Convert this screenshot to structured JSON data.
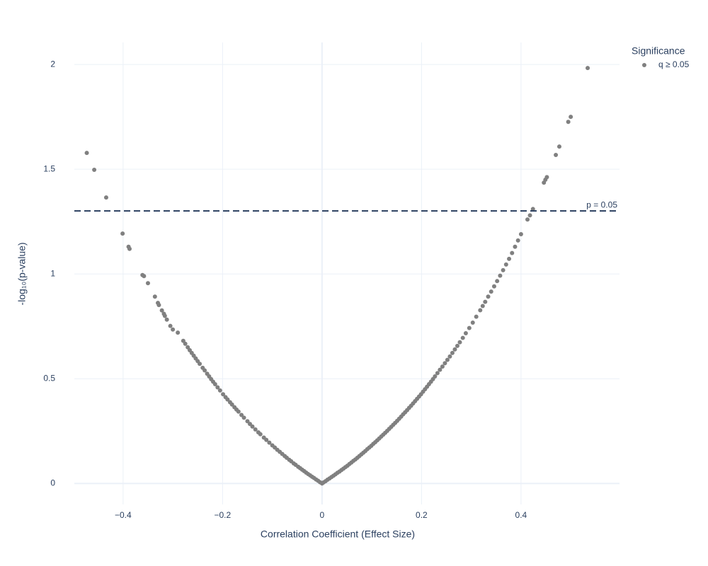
{
  "chart_data": {
    "type": "scatter",
    "x_label": "Correlation Coefficient (Effect Size)",
    "y_label": "-log₁₀(p-value)",
    "legend_title": "Significance",
    "legend_position": "top-right",
    "grid": true,
    "xlim": [
      -0.498,
      0.598
    ],
    "ylim": [
      -0.1,
      2.105
    ],
    "xticks": [
      {
        "value": -0.4,
        "label": "−0.4"
      },
      {
        "value": -0.2,
        "label": "−0.2"
      },
      0,
      0.2,
      0.4
    ],
    "yticks": [
      0,
      0.5,
      1,
      1.5,
      2
    ],
    "hline": {
      "y": 1.301,
      "label": "p = 0.05",
      "color": "#2a3f5f"
    },
    "series": [
      {
        "name": "q ≥ 0.05",
        "color": "#808080",
        "x": [
          -0.473,
          -0.458,
          -0.434,
          -0.401,
          -0.389,
          -0.387,
          -0.361,
          -0.358,
          -0.35,
          -0.336,
          -0.33,
          -0.328,
          -0.322,
          -0.318,
          -0.316,
          -0.312,
          -0.305,
          -0.3,
          -0.29,
          -0.279,
          -0.275,
          -0.27,
          -0.266,
          -0.262,
          -0.258,
          -0.254,
          -0.25,
          -0.246,
          -0.24,
          -0.236,
          -0.231,
          -0.227,
          -0.223,
          -0.219,
          -0.215,
          -0.21,
          -0.205,
          -0.199,
          -0.194,
          -0.19,
          -0.185,
          -0.181,
          -0.176,
          -0.172,
          -0.168,
          -0.162,
          -0.157,
          -0.15,
          -0.145,
          -0.14,
          -0.134,
          -0.128,
          -0.124,
          -0.117,
          -0.112,
          -0.106,
          -0.1,
          -0.095,
          -0.09,
          -0.085,
          -0.08,
          -0.075,
          -0.071,
          -0.066,
          -0.062,
          -0.057,
          -0.053,
          -0.048,
          -0.044,
          -0.04,
          -0.036,
          -0.032,
          -0.028,
          -0.024,
          -0.02,
          -0.016,
          -0.012,
          -0.008,
          -0.004,
          0,
          0.003,
          0.007,
          0.011,
          0.015,
          0.019,
          0.023,
          0.027,
          0.031,
          0.035,
          0.039,
          0.043,
          0.047,
          0.051,
          0.055,
          0.059,
          0.063,
          0.067,
          0.071,
          0.075,
          0.079,
          0.083,
          0.087,
          0.091,
          0.095,
          0.099,
          0.103,
          0.107,
          0.111,
          0.115,
          0.119,
          0.123,
          0.127,
          0.131,
          0.135,
          0.139,
          0.143,
          0.147,
          0.151,
          0.155,
          0.159,
          0.163,
          0.167,
          0.171,
          0.175,
          0.179,
          0.183,
          0.187,
          0.191,
          0.195,
          0.199,
          0.203,
          0.207,
          0.211,
          0.215,
          0.219,
          0.223,
          0.227,
          0.232,
          0.237,
          0.242,
          0.247,
          0.252,
          0.257,
          0.262,
          0.267,
          0.272,
          0.277,
          0.283,
          0.289,
          0.296,
          0.303,
          0.31,
          0.318,
          0.323,
          0.328,
          0.334,
          0.34,
          0.346,
          0.352,
          0.358,
          0.364,
          0.37,
          0.376,
          0.382,
          0.388,
          0.394,
          0.4,
          0.413,
          0.418,
          0.424,
          0.446,
          0.449,
          0.452,
          0.47,
          0.477,
          0.495,
          0.5,
          0.534
        ],
        "values": [
          1.578,
          1.497,
          1.365,
          1.193,
          1.13,
          1.12,
          0.995,
          0.99,
          0.956,
          0.892,
          0.862,
          0.852,
          0.826,
          0.81,
          0.8,
          0.782,
          0.752,
          0.735,
          0.72,
          0.681,
          0.667,
          0.65,
          0.636,
          0.623,
          0.61,
          0.597,
          0.584,
          0.571,
          0.552,
          0.54,
          0.524,
          0.511,
          0.498,
          0.486,
          0.474,
          0.459,
          0.444,
          0.426,
          0.412,
          0.401,
          0.388,
          0.377,
          0.364,
          0.353,
          0.343,
          0.327,
          0.314,
          0.297,
          0.284,
          0.272,
          0.258,
          0.244,
          0.235,
          0.219,
          0.208,
          0.195,
          0.182,
          0.172,
          0.161,
          0.151,
          0.141,
          0.131,
          0.123,
          0.113,
          0.106,
          0.096,
          0.089,
          0.08,
          0.073,
          0.066,
          0.059,
          0.052,
          0.045,
          0.039,
          0.032,
          0.026,
          0.019,
          0.013,
          0.006,
          0,
          0.005,
          0.011,
          0.018,
          0.024,
          0.031,
          0.037,
          0.044,
          0.051,
          0.057,
          0.064,
          0.071,
          0.078,
          0.085,
          0.093,
          0.1,
          0.108,
          0.115,
          0.123,
          0.131,
          0.139,
          0.147,
          0.155,
          0.164,
          0.172,
          0.18,
          0.189,
          0.197,
          0.206,
          0.215,
          0.224,
          0.233,
          0.242,
          0.251,
          0.261,
          0.27,
          0.28,
          0.289,
          0.299,
          0.309,
          0.319,
          0.33,
          0.34,
          0.35,
          0.361,
          0.371,
          0.382,
          0.393,
          0.404,
          0.415,
          0.426,
          0.438,
          0.45,
          0.462,
          0.474,
          0.486,
          0.498,
          0.511,
          0.527,
          0.543,
          0.558,
          0.574,
          0.59,
          0.606,
          0.623,
          0.64,
          0.657,
          0.674,
          0.695,
          0.717,
          0.742,
          0.768,
          0.796,
          0.827,
          0.847,
          0.867,
          0.892,
          0.916,
          0.941,
          0.966,
          0.992,
          1.018,
          1.045,
          1.072,
          1.1,
          1.13,
          1.16,
          1.19,
          1.26,
          1.28,
          1.31,
          1.436,
          1.45,
          1.462,
          1.568,
          1.608,
          1.726,
          1.75,
          1.983
        ]
      }
    ]
  }
}
